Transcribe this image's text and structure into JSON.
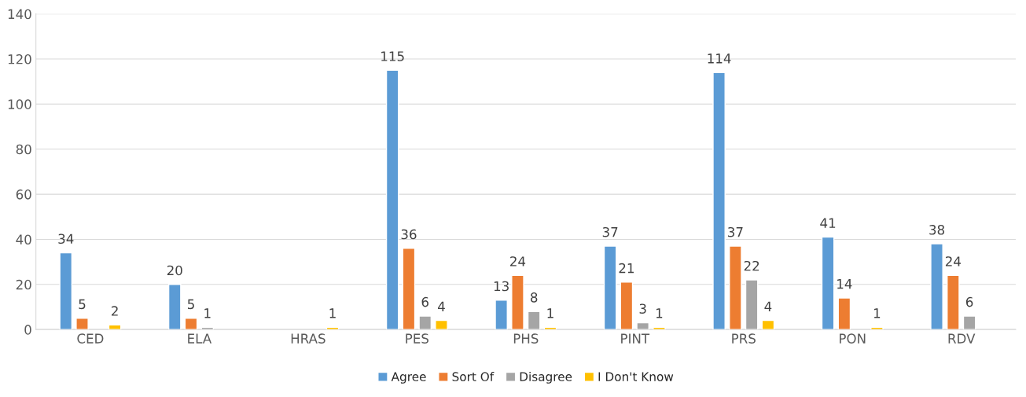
{
  "chart_data": {
    "type": "bar",
    "categories": [
      "CED",
      "ELA",
      "HRAS",
      "PES",
      "PHS",
      "PINT",
      "PRS",
      "PON",
      "RDV"
    ],
    "series": [
      {
        "name": "Agree",
        "color": "#5b9bd5",
        "values": [
          34,
          20,
          null,
          115,
          13,
          37,
          114,
          41,
          38
        ]
      },
      {
        "name": "Sort Of",
        "color": "#ed7d31",
        "values": [
          5,
          5,
          null,
          36,
          24,
          21,
          37,
          14,
          24
        ]
      },
      {
        "name": "Disagree",
        "color": "#a5a5a5",
        "values": [
          null,
          1,
          null,
          6,
          8,
          3,
          22,
          null,
          6
        ]
      },
      {
        "name": "I Don't Know",
        "color": "#ffc000",
        "values": [
          2,
          null,
          1,
          4,
          1,
          1,
          4,
          1,
          null
        ]
      }
    ],
    "ylim": [
      0,
      140
    ],
    "yticks": [
      0,
      20,
      40,
      60,
      80,
      100,
      120,
      140
    ],
    "grid": "y",
    "legend": "bottom",
    "data_labels": true
  }
}
